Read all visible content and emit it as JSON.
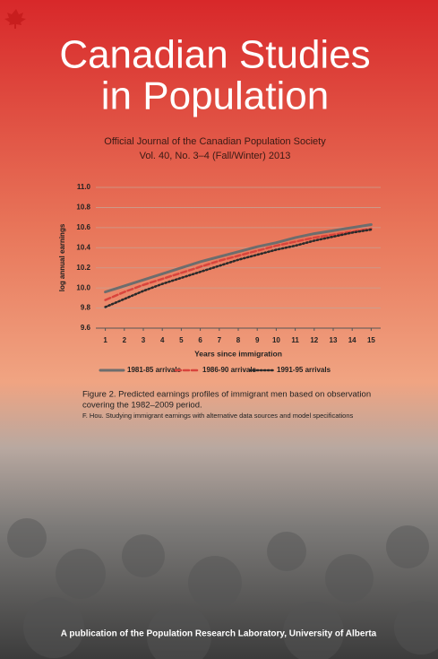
{
  "cover": {
    "title_lines": [
      "Canadian Studies",
      "in Population"
    ],
    "journal_lines": [
      "Official Journal of the Canadian Population Society",
      "Vol. 40, No. 3–4 (Fall/Winter) 2013"
    ],
    "caption_lines": [
      "Figure 2. Predicted earnings profiles of immigrant men based on observation",
      "covering the 1982–2009 period."
    ],
    "caption_source": "F. Hou. Studying immigrant earnings with alternative data sources and model specifications",
    "footer": "A publication of the Population Research Laboratory, University of Alberta"
  },
  "chart_data": {
    "type": "line",
    "x_label": "Years since immigration",
    "y_label": "log annual earnings",
    "x": [
      1,
      2,
      3,
      4,
      5,
      6,
      7,
      8,
      9,
      10,
      11,
      12,
      13,
      14,
      15
    ],
    "xlim": [
      0.5,
      15.5
    ],
    "xticks": [
      1,
      2,
      3,
      4,
      5,
      6,
      7,
      8,
      9,
      10,
      11,
      12,
      13,
      14,
      15
    ],
    "ylim": [
      9.6,
      11
    ],
    "yticks": [
      9.6,
      9.8,
      {
        "value": 10,
        "label": "10.0"
      },
      10.2,
      10.4,
      10.6,
      10.8,
      {
        "value": 11,
        "label": "11.0"
      }
    ],
    "grid": true,
    "legend": "bottom",
    "series": [
      {
        "name": "1981-85 arrivals",
        "color": "#6d6d6d",
        "style": "solid",
        "values": [
          9.96,
          10.02,
          10.08,
          10.14,
          10.2,
          10.26,
          10.31,
          10.36,
          10.41,
          10.45,
          10.5,
          10.54,
          10.57,
          10.6,
          10.63
        ]
      },
      {
        "name": "1986-90 arrivals",
        "color": "#d9443c",
        "style": "dashed",
        "values": [
          9.88,
          9.96,
          10.03,
          10.09,
          10.15,
          10.21,
          10.27,
          10.32,
          10.37,
          10.42,
          10.46,
          10.5,
          10.53,
          10.56,
          10.59
        ]
      },
      {
        "name": "1991-95 arrivals",
        "color": "#2a2a2a",
        "style": "dotted",
        "values": [
          9.81,
          9.89,
          9.97,
          10.04,
          10.1,
          10.16,
          10.22,
          10.28,
          10.33,
          10.38,
          10.42,
          10.47,
          10.51,
          10.55,
          10.58
        ]
      }
    ]
  }
}
